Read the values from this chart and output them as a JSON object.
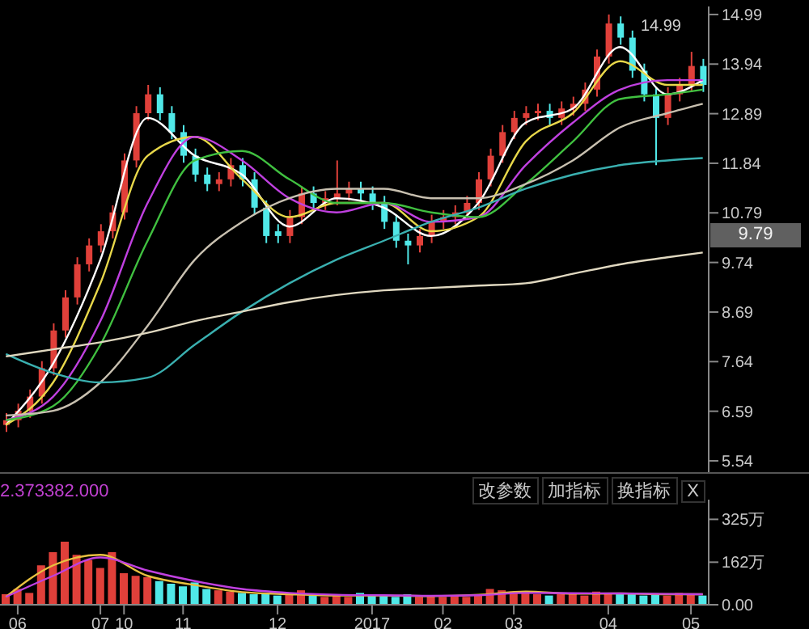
{
  "chart_data": [
    {
      "type": "candlestick",
      "categories": [
        null,
        "06",
        null,
        null,
        null,
        null,
        null,
        null,
        "07",
        null,
        "10",
        null,
        null,
        null,
        null,
        "11",
        null,
        null,
        null,
        null,
        null,
        null,
        null,
        "12",
        null,
        null,
        null,
        null,
        null,
        null,
        null,
        "2017",
        null,
        null,
        null,
        null,
        null,
        "02",
        null,
        null,
        null,
        null,
        null,
        "03",
        null,
        null,
        null,
        null,
        null,
        null,
        null,
        "04",
        null,
        null,
        null,
        null,
        null,
        null,
        "05",
        null
      ],
      "ohlc": [
        [
          6.3,
          6.55,
          6.15,
          6.4
        ],
        [
          6.4,
          6.75,
          6.25,
          6.6
        ],
        [
          6.6,
          7.05,
          6.45,
          6.9
        ],
        [
          6.9,
          7.65,
          6.75,
          7.5
        ],
        [
          7.5,
          8.45,
          7.35,
          8.3
        ],
        [
          8.3,
          9.15,
          8.15,
          9.0
        ],
        [
          9.0,
          9.85,
          8.85,
          9.7
        ],
        [
          9.7,
          10.25,
          9.55,
          10.1
        ],
        [
          10.1,
          10.55,
          9.95,
          10.4
        ],
        [
          10.4,
          10.95,
          10.25,
          10.8
        ],
        [
          10.8,
          12.05,
          10.65,
          11.9
        ],
        [
          11.9,
          13.05,
          11.75,
          12.9
        ],
        [
          12.9,
          13.5,
          12.75,
          13.3
        ],
        [
          13.3,
          13.45,
          12.75,
          12.9
        ],
        [
          12.9,
          13.05,
          12.35,
          12.5
        ],
        [
          12.5,
          12.65,
          11.85,
          12.0
        ],
        [
          12.0,
          12.15,
          11.45,
          11.6
        ],
        [
          11.6,
          11.75,
          11.25,
          11.4
        ],
        [
          11.4,
          11.65,
          11.25,
          11.5
        ],
        [
          11.5,
          11.95,
          11.35,
          11.8
        ],
        [
          11.8,
          11.95,
          11.35,
          11.5
        ],
        [
          11.5,
          11.65,
          10.75,
          10.9
        ],
        [
          10.9,
          11.05,
          10.15,
          10.3
        ],
        [
          10.4,
          10.55,
          10.15,
          10.3
        ],
        [
          10.3,
          10.85,
          10.15,
          10.7
        ],
        [
          10.7,
          11.35,
          10.55,
          11.2
        ],
        [
          11.2,
          11.35,
          10.85,
          11.0
        ],
        [
          11.0,
          11.25,
          10.85,
          11.1
        ],
        [
          11.1,
          11.9,
          10.95,
          11.2
        ],
        [
          11.2,
          11.45,
          11.05,
          11.3
        ],
        [
          11.3,
          11.45,
          11.05,
          11.2
        ],
        [
          11.2,
          11.35,
          10.85,
          11.0
        ],
        [
          11.0,
          11.15,
          10.45,
          10.6
        ],
        [
          10.6,
          10.75,
          10.05,
          10.2
        ],
        [
          10.2,
          10.35,
          9.7,
          10.1
        ],
        [
          10.1,
          10.45,
          9.95,
          10.3
        ],
        [
          10.3,
          10.75,
          10.15,
          10.6
        ],
        [
          10.6,
          10.85,
          10.45,
          10.7
        ],
        [
          10.7,
          10.95,
          10.55,
          10.8
        ],
        [
          10.8,
          11.15,
          10.65,
          11.0
        ],
        [
          11.0,
          11.65,
          10.85,
          11.5
        ],
        [
          11.5,
          12.15,
          11.35,
          12.0
        ],
        [
          12.0,
          12.65,
          11.85,
          12.5
        ],
        [
          12.5,
          12.95,
          12.35,
          12.8
        ],
        [
          12.8,
          13.05,
          12.65,
          12.9
        ],
        [
          12.9,
          13.1,
          12.75,
          12.95
        ],
        [
          12.95,
          13.1,
          12.65,
          12.8
        ],
        [
          12.8,
          13.15,
          12.65,
          13.0
        ],
        [
          13.0,
          13.25,
          12.85,
          13.1
        ],
        [
          13.1,
          13.55,
          12.95,
          13.4
        ],
        [
          13.4,
          14.25,
          13.25,
          14.1
        ],
        [
          14.1,
          14.99,
          13.95,
          14.8
        ],
        [
          14.8,
          14.95,
          14.35,
          14.5
        ],
        [
          14.5,
          14.65,
          13.65,
          13.8
        ],
        [
          13.8,
          13.95,
          13.15,
          13.3
        ],
        [
          13.3,
          13.45,
          11.8,
          12.8
        ],
        [
          12.8,
          13.45,
          12.65,
          13.3
        ],
        [
          13.3,
          13.65,
          13.15,
          13.5
        ],
        [
          13.5,
          14.2,
          13.35,
          13.9
        ],
        [
          13.9,
          14.05,
          13.35,
          13.5
        ]
      ],
      "colors": [
        "#e0403a",
        "#e0403a",
        "#e0403a",
        "#e0403a",
        "#e0403a",
        "#e0403a",
        "#e0403a",
        "#e0403a",
        "#e0403a",
        "#e0403a",
        "#e0403a",
        "#e0403a",
        "#e0403a",
        "#50e8e8",
        "#50e8e8",
        "#50e8e8",
        "#50e8e8",
        "#50e8e8",
        "#e0403a",
        "#e0403a",
        "#50e8e8",
        "#50e8e8",
        "#50e8e8",
        "#50e8e8",
        "#e0403a",
        "#e0403a",
        "#50e8e8",
        "#e0403a",
        "#e0403a",
        "#e0403a",
        "#50e8e8",
        "#50e8e8",
        "#50e8e8",
        "#50e8e8",
        "#50e8e8",
        "#e0403a",
        "#e0403a",
        "#e0403a",
        "#e0403a",
        "#e0403a",
        "#e0403a",
        "#e0403a",
        "#e0403a",
        "#e0403a",
        "#e0403a",
        "#e0403a",
        "#50e8e8",
        "#e0403a",
        "#e0403a",
        "#e0403a",
        "#e0403a",
        "#e0403a",
        "#50e8e8",
        "#50e8e8",
        "#50e8e8",
        "#50e8e8",
        "#e0403a",
        "#e0403a",
        "#e0403a",
        "#50e8e8"
      ],
      "series": [
        {
          "type": "line",
          "color": "#ffffff",
          "values": [
            6.3,
            null,
            null,
            null,
            7.6,
            null,
            null,
            null,
            9.8,
            null,
            null,
            null,
            12.8,
            null,
            null,
            null,
            12.0,
            null,
            null,
            null,
            11.6,
            null,
            null,
            null,
            10.5,
            null,
            null,
            null,
            11.1,
            null,
            null,
            null,
            10.9,
            null,
            null,
            null,
            10.3,
            null,
            null,
            null,
            11.0,
            null,
            null,
            null,
            12.7,
            null,
            null,
            null,
            13.0,
            null,
            null,
            null,
            14.3,
            null,
            null,
            null,
            13.3,
            null,
            null,
            13.6
          ]
        },
        {
          "type": "line",
          "color": "#e8d84a",
          "values": [
            6.3,
            null,
            null,
            null,
            7.2,
            null,
            null,
            null,
            9.3,
            null,
            null,
            null,
            12.0,
            null,
            null,
            null,
            12.4,
            null,
            null,
            null,
            11.5,
            null,
            null,
            null,
            10.7,
            null,
            null,
            null,
            11.0,
            null,
            null,
            null,
            11.0,
            null,
            null,
            null,
            10.4,
            null,
            null,
            null,
            10.7,
            null,
            null,
            null,
            12.3,
            null,
            null,
            null,
            12.9,
            null,
            null,
            null,
            14.0,
            null,
            null,
            null,
            13.5,
            null,
            null,
            13.5
          ]
        },
        {
          "type": "line",
          "color": "#c040e0",
          "values": [
            6.4,
            null,
            null,
            null,
            6.9,
            null,
            null,
            null,
            8.5,
            null,
            null,
            null,
            11.0,
            null,
            null,
            null,
            12.4,
            null,
            null,
            null,
            11.9,
            null,
            null,
            null,
            11.1,
            null,
            null,
            null,
            10.8,
            null,
            null,
            null,
            11.0,
            null,
            null,
            null,
            10.6,
            null,
            null,
            null,
            10.7,
            null,
            null,
            null,
            11.8,
            null,
            null,
            null,
            12.7,
            null,
            null,
            null,
            13.4,
            null,
            null,
            null,
            13.6,
            null,
            null,
            13.6
          ]
        },
        {
          "type": "line",
          "color": "#40c040",
          "values": [
            6.4,
            null,
            null,
            null,
            6.7,
            null,
            null,
            null,
            8.0,
            null,
            null,
            null,
            10.2,
            null,
            null,
            null,
            11.9,
            null,
            null,
            null,
            12.1,
            null,
            null,
            null,
            11.5,
            null,
            null,
            null,
            11.0,
            null,
            null,
            null,
            11.0,
            null,
            null,
            null,
            10.8,
            null,
            null,
            null,
            10.7,
            null,
            null,
            null,
            11.4,
            null,
            null,
            null,
            12.3,
            null,
            null,
            null,
            13.2,
            null,
            null,
            null,
            13.3,
            null,
            null,
            13.4
          ]
        },
        {
          "type": "line",
          "color": "#c8c0b0",
          "values": [
            6.5,
            null,
            null,
            null,
            6.6,
            null,
            null,
            null,
            7.2,
            null,
            null,
            null,
            8.4,
            null,
            null,
            null,
            9.8,
            null,
            null,
            null,
            10.6,
            null,
            null,
            null,
            11.1,
            null,
            null,
            null,
            11.3,
            null,
            null,
            null,
            11.3,
            null,
            null,
            null,
            11.1,
            null,
            null,
            null,
            11.1,
            null,
            null,
            null,
            11.4,
            null,
            null,
            null,
            11.9,
            null,
            null,
            null,
            12.6,
            null,
            null,
            null,
            12.9,
            null,
            null,
            13.1
          ]
        },
        {
          "type": "line",
          "color": "#3ab0b0",
          "values": [
            7.8,
            null,
            null,
            null,
            7.4,
            null,
            null,
            null,
            7.2,
            null,
            null,
            null,
            7.3,
            null,
            null,
            null,
            8.0,
            null,
            null,
            null,
            8.7,
            null,
            null,
            null,
            9.3,
            null,
            null,
            null,
            9.8,
            null,
            null,
            null,
            10.2,
            null,
            null,
            null,
            10.6,
            null,
            null,
            null,
            10.9,
            null,
            null,
            null,
            11.3,
            null,
            null,
            null,
            11.6,
            null,
            null,
            null,
            11.8,
            null,
            null,
            null,
            11.9,
            null,
            null,
            11.95
          ]
        },
        {
          "type": "line",
          "color": "#e0d8c0",
          "values": [
            7.75,
            null,
            null,
            null,
            7.9,
            null,
            null,
            null,
            8.05,
            null,
            null,
            null,
            8.25,
            null,
            null,
            null,
            8.5,
            null,
            null,
            null,
            8.7,
            null,
            null,
            null,
            8.9,
            null,
            null,
            null,
            9.05,
            null,
            null,
            null,
            9.15,
            null,
            null,
            null,
            9.2,
            null,
            null,
            null,
            9.25,
            null,
            null,
            null,
            9.3,
            null,
            null,
            null,
            9.5,
            null,
            null,
            null,
            9.7,
            null,
            null,
            null,
            9.85,
            null,
            null,
            9.95
          ]
        }
      ],
      "ylim": [
        5.3,
        15.16
      ],
      "yticks": [
        5.54,
        6.59,
        7.64,
        8.69,
        9.74,
        10.79,
        11.84,
        12.89,
        13.94,
        14.99
      ],
      "tick_labels": "y",
      "annotations": [
        "14.99",
        "9.79"
      ]
    },
    {
      "type": "bar",
      "categories": [
        null,
        "06",
        null,
        null,
        null,
        null,
        null,
        null,
        "07",
        null,
        "10",
        null,
        null,
        null,
        null,
        "11",
        null,
        null,
        null,
        null,
        null,
        null,
        null,
        "12",
        null,
        null,
        null,
        null,
        null,
        null,
        null,
        "2017",
        null,
        null,
        null,
        null,
        null,
        "02",
        null,
        null,
        null,
        null,
        null,
        "03",
        null,
        null,
        null,
        null,
        null,
        null,
        null,
        "04",
        null,
        null,
        null,
        null,
        null,
        null,
        "05",
        null
      ],
      "series": [
        {
          "type": "bar",
          "values": [
            40,
            60,
            45,
            150,
            200,
            240,
            190,
            170,
            140,
            200,
            120,
            110,
            105,
            90,
            80,
            70,
            85,
            60,
            55,
            50,
            45,
            40,
            45,
            35,
            40,
            55,
            35,
            30,
            35,
            30,
            45,
            40,
            35,
            30,
            40,
            30,
            35,
            30,
            35,
            30,
            35,
            60,
            55,
            50,
            45,
            40,
            35,
            40,
            45,
            35,
            50,
            45,
            40,
            45,
            35,
            40,
            35,
            45,
            40,
            35
          ],
          "colors": [
            "#e0403a",
            "#e0403a",
            "#e0403a",
            "#e0403a",
            "#e0403a",
            "#e0403a",
            "#e0403a",
            "#e0403a",
            "#e0403a",
            "#e0403a",
            "#e0403a",
            "#e0403a",
            "#e0403a",
            "#50e8e8",
            "#50e8e8",
            "#50e8e8",
            "#50e8e8",
            "#50e8e8",
            "#e0403a",
            "#e0403a",
            "#50e8e8",
            "#50e8e8",
            "#50e8e8",
            "#50e8e8",
            "#e0403a",
            "#e0403a",
            "#50e8e8",
            "#e0403a",
            "#e0403a",
            "#e0403a",
            "#50e8e8",
            "#50e8e8",
            "#50e8e8",
            "#50e8e8",
            "#50e8e8",
            "#e0403a",
            "#e0403a",
            "#e0403a",
            "#e0403a",
            "#e0403a",
            "#e0403a",
            "#e0403a",
            "#e0403a",
            "#e0403a",
            "#e0403a",
            "#e0403a",
            "#50e8e8",
            "#e0403a",
            "#e0403a",
            "#e0403a",
            "#e0403a",
            "#e0403a",
            "#50e8e8",
            "#50e8e8",
            "#50e8e8",
            "#50e8e8",
            "#e0403a",
            "#e0403a",
            "#e0403a",
            "#50e8e8"
          ]
        },
        {
          "type": "line",
          "color": "#e8c040",
          "values": [
            30,
            null,
            null,
            null,
            150,
            null,
            null,
            null,
            190,
            null,
            null,
            null,
            110,
            null,
            null,
            null,
            75,
            null,
            null,
            null,
            48,
            null,
            null,
            null,
            40,
            null,
            null,
            null,
            35,
            null,
            null,
            null,
            35,
            null,
            null,
            null,
            33,
            null,
            null,
            null,
            38,
            null,
            null,
            null,
            50,
            null,
            null,
            null,
            42,
            null,
            null,
            null,
            43,
            null,
            null,
            null,
            40,
            null,
            null,
            40
          ]
        },
        {
          "type": "line",
          "color": "#c040e0",
          "values": [
            30,
            null,
            null,
            null,
            110,
            null,
            null,
            null,
            180,
            null,
            null,
            null,
            130,
            null,
            null,
            null,
            90,
            null,
            null,
            null,
            60,
            null,
            null,
            null,
            45,
            null,
            null,
            null,
            38,
            null,
            null,
            null,
            36,
            null,
            null,
            null,
            34,
            null,
            null,
            null,
            36,
            null,
            null,
            null,
            45,
            null,
            null,
            null,
            44,
            null,
            null,
            null,
            43,
            null,
            null,
            null,
            41,
            null,
            null,
            40
          ]
        }
      ],
      "ylim": [
        0,
        400
      ],
      "yticks": [
        {
          "value": 0,
          "label": "0.00"
        },
        {
          "value": 162,
          "label": "162万"
        },
        {
          "value": 325,
          "label": "325万"
        }
      ],
      "annotations": [
        "2.373382.000",
        "改参数",
        "加指标",
        "换指标",
        "X"
      ]
    }
  ]
}
